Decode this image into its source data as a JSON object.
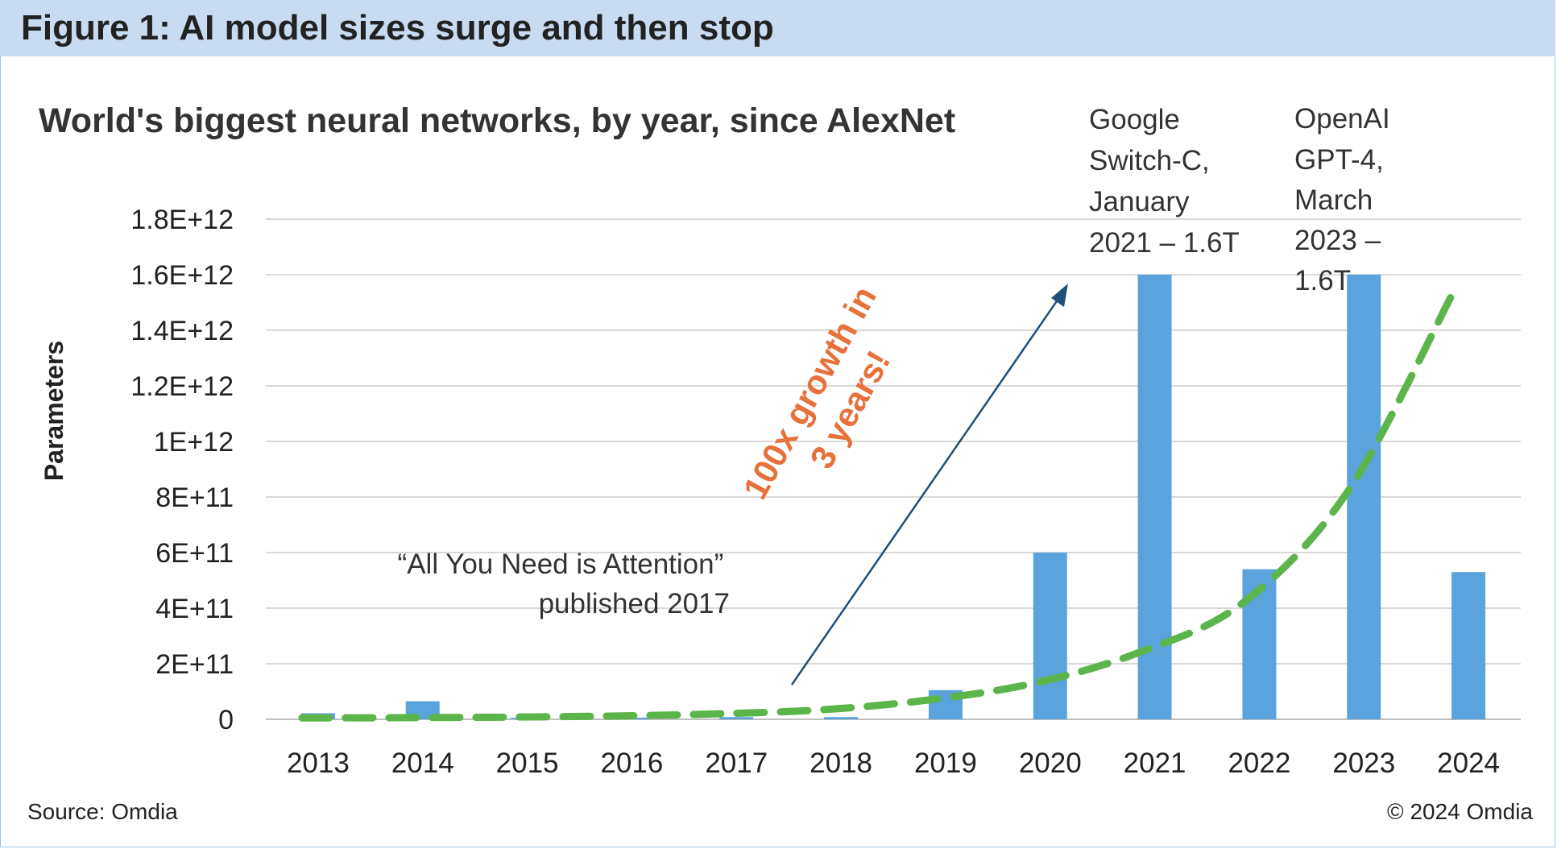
{
  "figure": {
    "title": "Figure 1: AI model sizes surge and then stop",
    "source": "Source: Omdia",
    "copyright": "© 2024 Omdia"
  },
  "colors": {
    "header_band": "#c9dbf0",
    "bar": "#5ba3dc",
    "trend": "#5cb54a",
    "arrow": "#1f4e79",
    "growth_text": "#e8703a",
    "grid": "#d9d9d9",
    "text": "#222222"
  },
  "chart_data": {
    "type": "bar",
    "title": "World's biggest neural networks, by year, since AlexNet",
    "xlabel": "",
    "ylabel": "Parameters",
    "ylim": [
      0,
      1800000000000
    ],
    "yticks": [
      0,
      200000000000,
      400000000000,
      600000000000,
      800000000000,
      1000000000000,
      1200000000000,
      1400000000000,
      1600000000000,
      1800000000000
    ],
    "ytick_labels": [
      "0",
      "2E+11",
      "4E+11",
      "6E+11",
      "8E+11",
      "1E+12",
      "1.2E+12",
      "1.4E+12",
      "1.6E+12",
      "1.8E+12"
    ],
    "grid": true,
    "legend": "none",
    "categories": [
      "2013",
      "2014",
      "2015",
      "2016",
      "2017",
      "2018",
      "2019",
      "2020",
      "2021",
      "2022",
      "2023",
      "2024"
    ],
    "series": [
      {
        "values": [
          22000000000,
          65000000000,
          5000000000,
          6000000000,
          8000000000,
          8000000000,
          105000000000,
          600000000000,
          1600000000000,
          540000000000,
          1600000000000,
          530000000000
        ]
      }
    ],
    "trendline": {
      "style": "dashed",
      "values": [
        5000000000,
        6000000000,
        8000000000,
        12000000000,
        20000000000,
        35000000000,
        70000000000,
        130000000000,
        240000000000,
        420000000000,
        820000000000,
        1530000000000
      ]
    },
    "annotations": {
      "switch_c": [
        "Google",
        "Switch-C,",
        "January",
        "2021 – 1.6T"
      ],
      "gpt4": [
        "OpenAI",
        "GPT-4,",
        "March",
        "2023 –",
        "1.6T"
      ],
      "attention": [
        "“All You Need is Attention”",
        "published 2017"
      ],
      "growth": [
        "100x growth in",
        "3 years!"
      ]
    }
  }
}
